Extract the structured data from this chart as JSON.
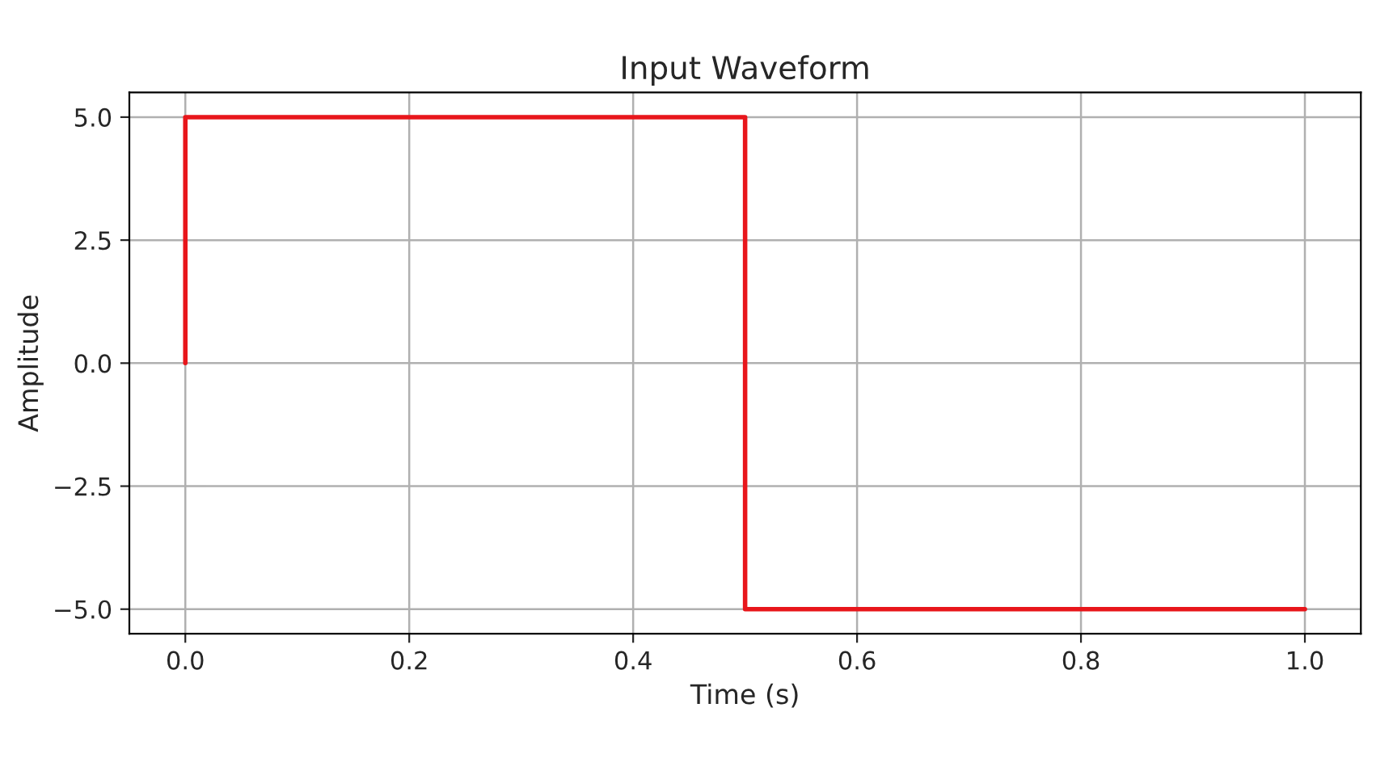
{
  "chart_data": {
    "type": "line",
    "title": "Input Waveform",
    "xlabel": "Time (s)",
    "ylabel": "Amplitude",
    "x": [
      0.0,
      0.0,
      0.5,
      0.5,
      1.0
    ],
    "series": [
      {
        "color": "#e8161b",
        "values": [
          0,
          5,
          5,
          -5,
          -5
        ]
      }
    ],
    "xlim": [
      -0.05,
      1.05
    ],
    "xticks": [
      {
        "value": 0,
        "label": "0.0"
      },
      0.2,
      0.4,
      0.6,
      0.8,
      {
        "value": 1,
        "label": "1.0"
      }
    ],
    "ylim": [
      -5.5,
      5.5
    ],
    "yticks": [
      {
        "value": -5,
        "label": "−5.0"
      },
      {
        "value": -2.5,
        "label": "−2.5"
      },
      {
        "value": 0,
        "label": "0.0"
      },
      2.5,
      {
        "value": 5,
        "label": "5.0"
      }
    ],
    "grid": true
  }
}
